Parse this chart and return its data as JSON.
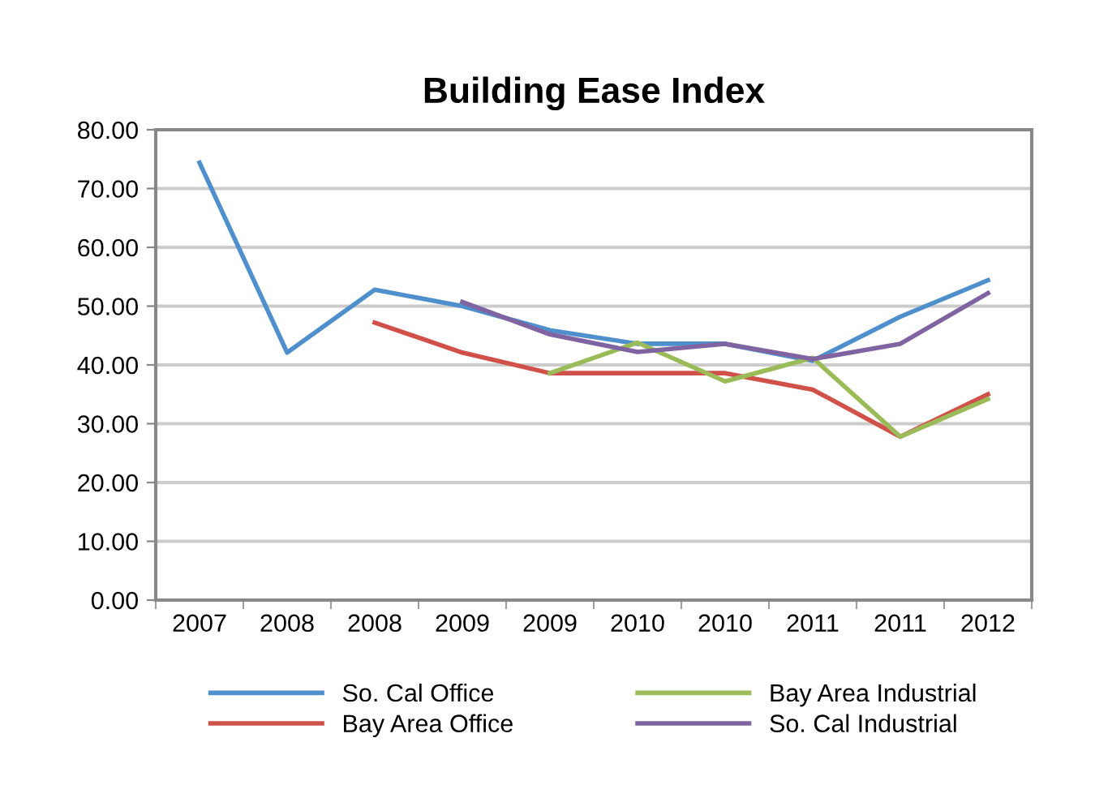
{
  "chart_data": {
    "type": "line",
    "title": "Building Ease Index",
    "categories": [
      "2007",
      "2008",
      "2008",
      "2009",
      "2009",
      "2010",
      "2010",
      "2011",
      "2011",
      "2012"
    ],
    "series": [
      {
        "name": "So. Cal Office",
        "color": "#4f8fcc",
        "values": [
          74.4,
          42.1,
          52.8,
          50.0,
          45.9,
          43.6,
          43.6,
          40.7,
          48.2,
          54.4
        ]
      },
      {
        "name": "Bay Area Office",
        "color": "#d0504a",
        "values": [
          null,
          null,
          47.2,
          42.1,
          38.6,
          38.6,
          38.6,
          35.8,
          27.8,
          35.0
        ]
      },
      {
        "name": "Bay Area Industrial",
        "color": "#9bbb59",
        "values": [
          null,
          null,
          null,
          null,
          38.6,
          43.8,
          37.2,
          41.2,
          27.8,
          34.2
        ]
      },
      {
        "name": "So. Cal Industrial",
        "color": "#8064a2",
        "values": [
          null,
          null,
          null,
          50.7,
          45.2,
          42.2,
          43.6,
          41.0,
          43.6,
          52.2
        ]
      }
    ],
    "ylim": [
      0,
      80
    ],
    "yticks": [
      {
        "value": 0,
        "label": "0.00"
      },
      {
        "value": 10,
        "label": "10.00"
      },
      {
        "value": 20,
        "label": "20.00"
      },
      {
        "value": 30,
        "label": "30.00"
      },
      {
        "value": 40,
        "label": "40.00"
      },
      {
        "value": 50,
        "label": "50.00"
      },
      {
        "value": 60,
        "label": "60.00"
      },
      {
        "value": 70,
        "label": "70.00"
      },
      {
        "value": 80,
        "label": "80.00"
      }
    ],
    "grid": "y",
    "legend": "bottom",
    "marker": "none",
    "line_style": "solid"
  }
}
